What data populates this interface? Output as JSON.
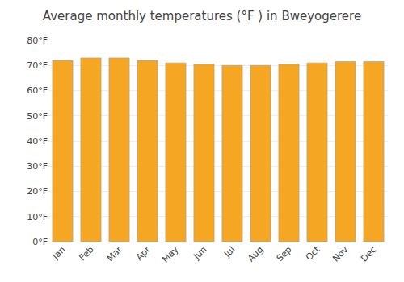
{
  "chart_data": {
    "type": "bar",
    "title": "Average monthly temperatures (°F ) in Bweyogerere",
    "categories": [
      "Jan",
      "Feb",
      "Mar",
      "Apr",
      "May",
      "Jun",
      "Jul",
      "Aug",
      "Sep",
      "Oct",
      "Nov",
      "Dec"
    ],
    "values": [
      72,
      73,
      73,
      72,
      71,
      70.5,
      70,
      70,
      70.5,
      71,
      71.5,
      71.5
    ],
    "color": "#F5A623",
    "ylim": [
      0,
      80
    ],
    "yticks": [
      {
        "value": 0,
        "label": "0°F"
      },
      {
        "value": 10,
        "label": "10°F"
      },
      {
        "value": 20,
        "label": "20°F"
      },
      {
        "value": 30,
        "label": "30°F"
      },
      {
        "value": 40,
        "label": "40°F"
      },
      {
        "value": 50,
        "label": "50°F"
      },
      {
        "value": 60,
        "label": "60°F"
      },
      {
        "value": 70,
        "label": "70°F"
      },
      {
        "value": 80,
        "label": "80°F"
      }
    ],
    "grid": true
  }
}
